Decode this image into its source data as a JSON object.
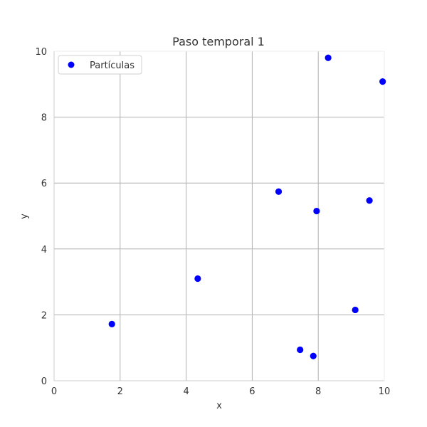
{
  "chart_data": {
    "type": "scatter",
    "title": "Paso temporal 1",
    "xlabel": "x",
    "ylabel": "y",
    "xlim": [
      0,
      10
    ],
    "ylim": [
      0,
      10
    ],
    "xticks": [
      "0",
      "2",
      "4",
      "6",
      "8",
      "10"
    ],
    "yticks": [
      "0",
      "2",
      "4",
      "6",
      "8",
      "10"
    ],
    "grid": true,
    "legend_position": "top-left",
    "series": [
      {
        "name": "Partículas",
        "color": "#0000ff",
        "points": [
          {
            "x": 1.75,
            "y": 1.72
          },
          {
            "x": 4.35,
            "y": 3.1
          },
          {
            "x": 6.8,
            "y": 5.74
          },
          {
            "x": 7.45,
            "y": 0.94
          },
          {
            "x": 7.85,
            "y": 0.75
          },
          {
            "x": 7.95,
            "y": 5.15
          },
          {
            "x": 8.3,
            "y": 9.8
          },
          {
            "x": 9.12,
            "y": 2.15
          },
          {
            "x": 9.55,
            "y": 5.47
          },
          {
            "x": 9.95,
            "y": 9.08
          }
        ]
      }
    ]
  }
}
